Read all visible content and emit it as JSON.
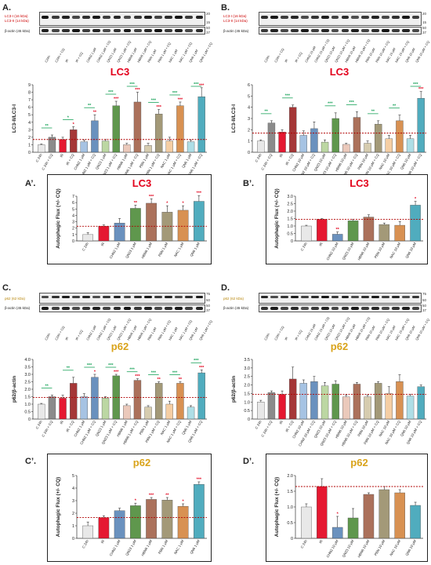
{
  "figure": {
    "panels": [
      {
        "id": "A",
        "label": "A.",
        "marker": "LC3-I (16 kDa)",
        "marker2": "LC3-II (14 kDa)",
        "actin": "β-actin (45 kDa)",
        "mw": [
          "20",
          "15",
          "50",
          "37"
        ],
        "lanes": [
          "C24h",
          "C24h + CQ",
          "IR",
          "IR + CQ",
          "CHN2 1 μM",
          "CHN2 1 μM + CQ",
          "QN23 1 μM",
          "QN23 1 μM + CQ",
          "HBN6 1 μM",
          "HBN6 1 μM + CQ",
          "PBN 1 μM",
          "PBN 1 μM + CQ",
          "NAC 1 μM",
          "NAC 1 μM + CQ",
          "QN6 1 μM",
          "QN6 1 μM + CQ"
        ]
      },
      {
        "id": "B",
        "label": "B.",
        "marker": "LC3-I (16 kDa)",
        "marker2": "LC3-II (14 kDa)",
        "actin": "β-actin (45 kDa)",
        "mw": [
          "20",
          "15",
          "50",
          "37"
        ],
        "lanes": [
          "C24h",
          "C24h + CQ",
          "IR",
          "IR + CQ",
          "CHN2 10 μM",
          "CHN2 10 μM + CQ",
          "QN23 10 μM",
          "QN23 10 μM + CQ",
          "HBN6 10 μM",
          "HBN6 10 μM + CQ",
          "PBN 10 μM",
          "PBN 10 μM + CQ",
          "NAC 10 μM",
          "NAC 10 μM + CQ",
          "QN6 10 μM",
          "QN6 10 μM + CQ"
        ]
      },
      {
        "id": "C",
        "label": "C.",
        "marker": "p62 (62 kDa)",
        "actin": "β-actin (45 kDa)",
        "mw": [
          "75",
          "50",
          "50",
          "37"
        ],
        "lanes": [
          "C24h",
          "C24h + CQ",
          "IR",
          "IR + CQ",
          "CHN2 1 μM",
          "CHN2 1 μM + CQ",
          "QN23 1 μM",
          "QN23 1 μM + CQ",
          "HBN6 1 μM",
          "HBN6 1 μM + CQ",
          "PBN 1 μM",
          "PBN 1 μM + CQ",
          "NAC 1 μM",
          "NAC 1 μM + CQ",
          "QN6 1 μM",
          "QN6 1 μM + CQ"
        ]
      },
      {
        "id": "D",
        "label": "D.",
        "marker": "p62 (62 kDa)",
        "actin": "β-actin (45 kDa)",
        "mw": [
          "75",
          "50",
          "50",
          "37"
        ],
        "lanes": [
          "C24h",
          "C24h + CQ",
          "IR",
          "IR + CQ",
          "CHN2 10 μM",
          "CHN2 10 μM + CQ",
          "QN23 10 μM",
          "QN23 10 μM + CQ",
          "HBN6 10 μM",
          "HBN6 10 μM + CQ",
          "PBN 10 μM",
          "PBN 10 μM + CQ",
          "NAC 10 μM",
          "NAC 10 μM + CQ",
          "QN6 10 μM",
          "QN6 10 μM + CQ"
        ]
      }
    ],
    "sub_labels": {
      "A2": "A’.",
      "B2": "B’.",
      "C2": "C’.",
      "D2": "D’."
    }
  },
  "chart_data": [
    {
      "id": "A-chart",
      "type": "bar",
      "title": "LC3",
      "title_color": "#e3001b",
      "ylabel": "LC3-II/LC3-I",
      "ylim": [
        0,
        9
      ],
      "yticks": [
        0,
        1,
        2,
        3,
        4,
        5,
        6,
        7,
        8,
        9
      ],
      "categories": [
        "C 24h",
        "C 24h + CQ",
        "IR",
        "IR + CQ",
        "CHN2 1 μM",
        "CHN2 1 μM + CQ",
        "QN23 1 μM",
        "QN23 1 μM + CQ",
        "HBN6 1 μM",
        "HBN6 1 μM + CQ",
        "PBN 1 μM",
        "PBN 1 μM + CQ",
        "NAC 1 μM",
        "NAC 1 μM + CQ",
        "QN6 1 μM",
        "QN6 1 μM + CQ"
      ],
      "values": [
        1.0,
        2.0,
        1.7,
        3.0,
        1.4,
        4.2,
        1.5,
        6.2,
        1.0,
        6.7,
        0.9,
        5.1,
        1.5,
        6.2,
        1.4,
        7.4
      ],
      "errors": [
        0.1,
        0.3,
        0.3,
        0.4,
        0.2,
        0.8,
        0.2,
        0.6,
        0.2,
        1.3,
        0.3,
        0.6,
        0.5,
        0.5,
        0.2,
        1.2
      ],
      "sig_red": [
        "",
        "",
        "",
        "*",
        "",
        "**",
        "",
        "***",
        "",
        "***",
        "",
        "***",
        "",
        "***",
        "",
        "***"
      ],
      "sig_green": [
        "**",
        "*",
        "**",
        "***",
        "***",
        "***",
        "***",
        "***"
      ],
      "refline": 1.7
    },
    {
      "id": "B-chart",
      "type": "bar",
      "title": "LC3",
      "title_color": "#e3001b",
      "ylabel": "LC3-II/LC3-I",
      "ylim": [
        0,
        6
      ],
      "yticks": [
        0,
        1,
        2,
        3,
        4,
        5,
        6
      ],
      "categories": [
        "C 24h",
        "C 24h + CQ",
        "IR",
        "IR + CQ",
        "CHN2 10 μM",
        "CHN2 10 μM + CQ",
        "QN23 10 μM",
        "QN23 10 μM + CQ",
        "HBN6 10 μM",
        "HBN6 10 μM + CQ",
        "PBN 10 μM",
        "PBN 10 μM + CQ",
        "NAC 10 μM",
        "NAC 10 μM + CQ",
        "QN6 10 μM",
        "QN6 10 μM + CQ"
      ],
      "values": [
        1.0,
        2.6,
        1.8,
        4.0,
        1.5,
        2.1,
        0.9,
        3.0,
        0.7,
        3.1,
        0.8,
        2.5,
        1.2,
        2.8,
        1.2,
        4.8
      ],
      "errors": [
        0.1,
        0.2,
        0.2,
        0.2,
        0.4,
        0.6,
        0.2,
        0.5,
        0.1,
        0.5,
        0.2,
        0.3,
        0.3,
        0.5,
        0.3,
        0.6
      ],
      "sig_red": [
        "",
        "",
        "",
        "",
        "",
        "",
        "",
        "",
        "",
        "",
        "",
        "",
        "",
        "",
        "",
        "***"
      ],
      "sig_green": [
        "**",
        "***",
        "",
        "***",
        "***",
        "**",
        "**",
        "***"
      ],
      "refline": 1.7
    },
    {
      "id": "A2-chart",
      "type": "bar",
      "title": "LC3",
      "title_color": "#e3001b",
      "ylabel": "Autophagic Flux (+/- CQ)",
      "ylim": [
        0,
        7
      ],
      "yticks": [
        0,
        1,
        2,
        3,
        4,
        5,
        6,
        7
      ],
      "categories": [
        "C 24h",
        "IR",
        "CHN2 1 μM",
        "QN23 1 μM",
        "HBN6 1 μM",
        "PBN 1 μM",
        "NAC 1 μM",
        "QN6 1 μM"
      ],
      "values": [
        1.0,
        2.3,
        2.8,
        5.1,
        5.9,
        4.5,
        4.8,
        6.2
      ],
      "errors": [
        0.3,
        0.2,
        0.7,
        0.5,
        0.7,
        1.0,
        0.7,
        0.9
      ],
      "sig_red": [
        "",
        "",
        "",
        "**",
        "***",
        "*",
        "*",
        "***"
      ],
      "refline": 2.3
    },
    {
      "id": "B2-chart",
      "type": "bar",
      "title": "LC3",
      "title_color": "#e3001b",
      "ylabel": "Autophagic Flux (+/- CQ)",
      "ylim": [
        0,
        3
      ],
      "yticks": [
        "0",
        "0.5",
        "1.0",
        "1.5",
        "2.0",
        "2.5",
        "3.0"
      ],
      "categories": [
        "C 24h",
        "IR",
        "CHN2 10 μM",
        "QN23 10 μM",
        "HBN6 10 μM",
        "PBN 10 μM",
        "NAC 10 μM",
        "QN6 10 μM"
      ],
      "values": [
        1.0,
        1.45,
        0.45,
        1.35,
        1.6,
        1.1,
        1.05,
        2.4
      ],
      "errors": [
        0.05,
        0.05,
        0.15,
        0.1,
        0.15,
        0.1,
        0.25,
        0.25
      ],
      "sig_red": [
        "",
        "",
        "**",
        "",
        "",
        "",
        "",
        "*"
      ],
      "refline": 1.45
    },
    {
      "id": "C-chart",
      "type": "bar",
      "title": "p62",
      "title_color": "#d9a31a",
      "ylabel": "p62/β-actin",
      "ylim": [
        0,
        4
      ],
      "yticks": [
        "0",
        "0.5",
        "1.0",
        "1.5",
        "2.0",
        "2.5",
        "3.0",
        "3.5",
        "4.0"
      ],
      "categories": [
        "C 24h",
        "C 24h + CQ",
        "IR",
        "IR + CQ",
        "CHN2 1 μM",
        "CHN2 1 μM + CQ",
        "QN23 1 μM",
        "QN23 1 μM + CQ",
        "HBN6 1 μM",
        "HBN6 1 μM + CQ",
        "PBN 1 μM",
        "PBN 1 μM + CQ",
        "NAC 1 μM",
        "NAC 1 μM + CQ",
        "QN6 1 μM",
        "QN6 1 μM + CQ"
      ],
      "values": [
        1.0,
        1.5,
        1.4,
        2.4,
        1.5,
        2.8,
        1.4,
        2.9,
        0.9,
        2.6,
        0.8,
        2.4,
        1.0,
        2.4,
        0.8,
        3.1
      ],
      "errors": [
        0.05,
        0.1,
        0.2,
        0.4,
        0.2,
        0.2,
        0.1,
        0.1,
        0.1,
        0.1,
        0.1,
        0.1,
        0.2,
        0.1,
        0.1,
        0.2
      ],
      "sig_red": [
        "",
        "",
        "",
        "",
        "",
        "*",
        "",
        "***",
        "",
        "***",
        "",
        "**",
        "",
        "**",
        "",
        "***"
      ],
      "sig_green": [
        "**",
        "**",
        "***",
        "***",
        "***",
        "***",
        "***",
        "***"
      ],
      "refline": 1.45
    },
    {
      "id": "D-chart",
      "type": "bar",
      "title": "p62",
      "title_color": "#d9a31a",
      "ylabel": "p62/β-actin",
      "ylim": [
        0,
        3.5
      ],
      "yticks": [
        "0",
        "0.5",
        "1.0",
        "1.5",
        "2.0",
        "2.5",
        "3.0",
        "3.5"
      ],
      "categories": [
        "C 24h",
        "C 24h + CQ",
        "IR",
        "IR + CQ",
        "CHN2 10 μM",
        "CHN2 10 μM + CQ",
        "QN23 10 μM",
        "QN23 10 μM + CQ",
        "HBN6 10 μM",
        "HBN6 10 μM + CQ",
        "PBN 10 μM",
        "PBN 10 μM + CQ",
        "NAC 10 μM",
        "NAC 10 μM + CQ",
        "QN6 10 μM",
        "QN6 10 μM + CQ"
      ],
      "values": [
        1.0,
        1.55,
        1.45,
        2.35,
        2.1,
        2.2,
        1.95,
        2.05,
        1.3,
        2.05,
        1.3,
        2.1,
        1.5,
        2.2,
        1.35,
        1.9
      ],
      "errors": [
        0.1,
        0.1,
        0.2,
        0.7,
        0.2,
        0.3,
        0.2,
        0.2,
        0.1,
        0.1,
        0.1,
        0.1,
        0.4,
        0.4,
        0.1,
        0.1
      ],
      "sig_red": [
        "",
        "",
        "",
        "",
        "",
        "",
        "",
        "",
        "",
        "",
        "",
        "",
        "",
        "",
        "",
        ""
      ],
      "refline": 1.45
    },
    {
      "id": "C2-chart",
      "type": "bar",
      "title": "p62",
      "title_color": "#d9a31a",
      "ylabel": "Autophagic Flux (+/- CQ)",
      "ylim": [
        0,
        5
      ],
      "yticks": [
        0,
        1,
        2,
        3,
        4,
        5
      ],
      "categories": [
        "C 24h",
        "IR",
        "CHN2 1 μM",
        "QN23 1 μM",
        "HBN6 1 μM",
        "PBN 1 μM",
        "NAC 1 μM",
        "QN6 1 μM"
      ],
      "values": [
        1.0,
        1.65,
        2.2,
        2.6,
        3.1,
        3.05,
        2.55,
        4.3
      ],
      "errors": [
        0.3,
        0.15,
        0.2,
        0.2,
        0.15,
        0.2,
        0.2,
        0.2
      ],
      "sig_red": [
        "",
        "",
        "",
        "*",
        "***",
        "**",
        "*",
        "***"
      ],
      "refline": 1.65
    },
    {
      "id": "D2-chart",
      "type": "bar",
      "title": "p62",
      "title_color": "#d9a31a",
      "ylabel": "Autophagic Flux (+/- CQ)",
      "ylim": [
        0,
        2
      ],
      "yticks": [
        "0",
        "0.5",
        "1.0",
        "1.5",
        "2.0"
      ],
      "categories": [
        "C 24h",
        "IR",
        "CHN2 10 μM",
        "QN23 10 μM",
        "HBN6 10 μM",
        "PBN 10 μM",
        "NAC 10 μM",
        "QN6 10 μM"
      ],
      "values": [
        1.0,
        1.65,
        0.35,
        0.65,
        1.4,
        1.55,
        1.45,
        1.05
      ],
      "errors": [
        0.1,
        0.25,
        0.35,
        0.3,
        0.05,
        0.1,
        0.1,
        0.1
      ],
      "sig_red": [
        "",
        "",
        "*",
        "",
        "",
        "",
        "",
        ""
      ],
      "refline": 1.65
    }
  ],
  "colors": {
    "palette": [
      "#e6e6e6",
      "#7f7f7f",
      "#e3001b",
      "#9c2222",
      "#9dbde0",
      "#5a86b8",
      "#b5d39a",
      "#4e8c3a",
      "#e9c4b4",
      "#a3624a",
      "#d2c7a7",
      "#9a8f6a",
      "#f5c99b",
      "#d48640",
      "#a6dbe4",
      "#3ea4b7"
    ],
    "sig_red": "#e3001b",
    "sig_green": "#1aa35a",
    "refline": "#b00000"
  }
}
